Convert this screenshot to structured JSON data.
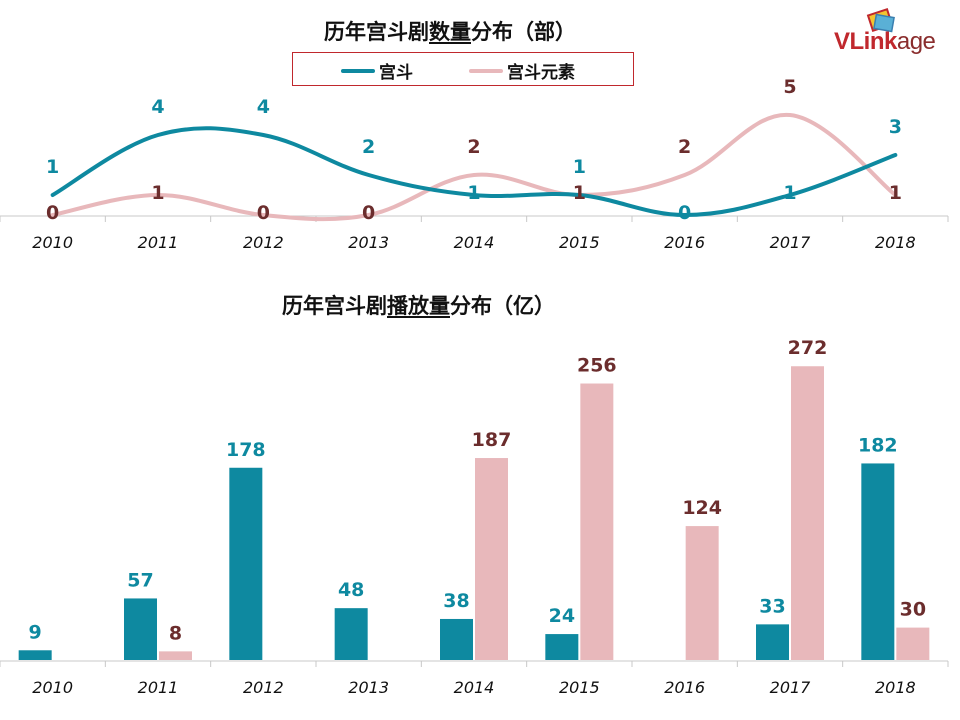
{
  "logo": {
    "prefix": "VLink",
    "suffix": "age"
  },
  "chart_data": [
    {
      "type": "line",
      "title_pre": "历年宫斗剧",
      "title_ul": "数量",
      "title_post": "分布（部）",
      "x": [
        "2010",
        "2011",
        "2012",
        "2013",
        "2014",
        "2015",
        "2016",
        "2017",
        "2018"
      ],
      "series": [
        {
          "name": "宫斗",
          "color": "#0e89a0",
          "values": [
            1,
            4,
            4,
            2,
            1,
            1,
            0,
            1,
            3
          ]
        },
        {
          "name": "宫斗元素",
          "color": "#e8b8bb",
          "label_color": "#6b2d2d",
          "values": [
            0,
            1,
            0,
            0,
            2,
            1,
            2,
            5,
            1
          ]
        }
      ],
      "legend_position": "top"
    },
    {
      "type": "bar",
      "title_pre": "历年宫斗剧",
      "title_ul": "播放量",
      "title_post": "分布（亿）",
      "categories": [
        "2010",
        "2011",
        "2012",
        "2013",
        "2014",
        "2015",
        "2016",
        "2017",
        "2018"
      ],
      "series": [
        {
          "name": "宫斗",
          "color": "#0e89a0",
          "values": [
            9,
            57,
            178,
            48,
            38,
            24,
            null,
            33,
            182
          ]
        },
        {
          "name": "宫斗元素",
          "color": "#e8b8bb",
          "label_color": "#6b2d2d",
          "values": [
            null,
            8,
            null,
            null,
            187,
            256,
            124,
            272,
            30
          ]
        }
      ]
    }
  ]
}
